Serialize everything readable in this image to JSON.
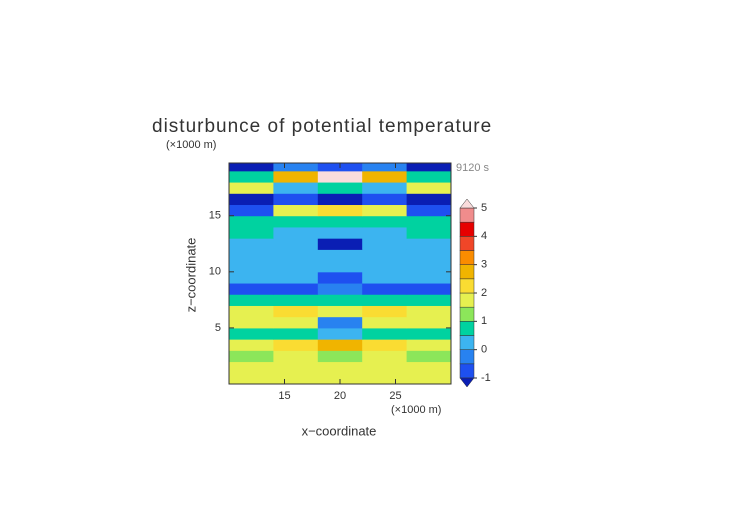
{
  "chart_data": {
    "type": "contour",
    "title": "disturbunce of potential temperature",
    "y_unit_label": "(×1000 m)",
    "x_unit_label": "(×1000 m)",
    "time_label": "9120 s",
    "xlabel": "x−coordinate",
    "ylabel": "z−coordinate",
    "x": [
      12,
      16,
      20,
      24,
      28
    ],
    "z": [
      0.5,
      1.5,
      2.5,
      3.5,
      4.5,
      5.5,
      6.5,
      7.5,
      8.5,
      9.5,
      10.5,
      11.5,
      12.5,
      13.5,
      14.5,
      15.5,
      16.5,
      17.5,
      18.5,
      19.5
    ],
    "values": [
      [
        1.5,
        1.5,
        1.5,
        1.5,
        1.5
      ],
      [
        1.8,
        1.6,
        1.8,
        1.6,
        1.8
      ],
      [
        1.2,
        1.5,
        1.3,
        1.5,
        1.2
      ],
      [
        1.8,
        2.0,
        2.5,
        2.0,
        1.8
      ],
      [
        0.8,
        0.5,
        0.3,
        0.5,
        0.8
      ],
      [
        1.5,
        1.8,
        -0.5,
        1.8,
        1.5
      ],
      [
        1.8,
        2.0,
        1.5,
        2.0,
        1.8
      ],
      [
        0.5,
        0.8,
        0.6,
        0.8,
        0.5
      ],
      [
        -0.8,
        -0.6,
        -0.5,
        -0.6,
        -0.8
      ],
      [
        0.2,
        0.1,
        -0.7,
        0.1,
        0.2
      ],
      [
        0.3,
        0.2,
        0.2,
        0.2,
        0.3
      ],
      [
        0.3,
        0.3,
        0.4,
        0.3,
        0.3
      ],
      [
        0.4,
        0.2,
        -1.2,
        0.2,
        0.4
      ],
      [
        0.6,
        0.3,
        0.2,
        0.3,
        0.6
      ],
      [
        0.8,
        0.5,
        0.8,
        0.5,
        0.8
      ],
      [
        -0.8,
        1.8,
        2.2,
        1.8,
        -0.8
      ],
      [
        -1.3,
        -0.9,
        -1.2,
        -0.9,
        -1.3
      ],
      [
        1.8,
        0.3,
        0.6,
        0.3,
        1.8
      ],
      [
        0.8,
        2.5,
        5.5,
        2.5,
        0.8
      ],
      [
        -1.2,
        -0.5,
        -1.0,
        -0.5,
        -1.2
      ]
    ],
    "xlim": [
      10,
      30
    ],
    "ylim": [
      0,
      19.7
    ],
    "xticks": [
      15,
      20,
      25
    ],
    "yticks": [
      5,
      10,
      15
    ],
    "levels": [
      -1,
      -0.5,
      0,
      0.5,
      1,
      1.5,
      2,
      2.5,
      3,
      3.5,
      4,
      4.5,
      5
    ],
    "colors": [
      "#0a1eb4",
      "#1e50f0",
      "#2882f0",
      "#3cb4f0",
      "#00d2a0",
      "#8ce65a",
      "#e6f050",
      "#fadc32",
      "#f0b400",
      "#fa8c00",
      "#f04628",
      "#e60000",
      "#f08c8c",
      "#fadcdc"
    ],
    "colorbar_ticks": [
      -1,
      0,
      1,
      2,
      3,
      4,
      5
    ]
  }
}
